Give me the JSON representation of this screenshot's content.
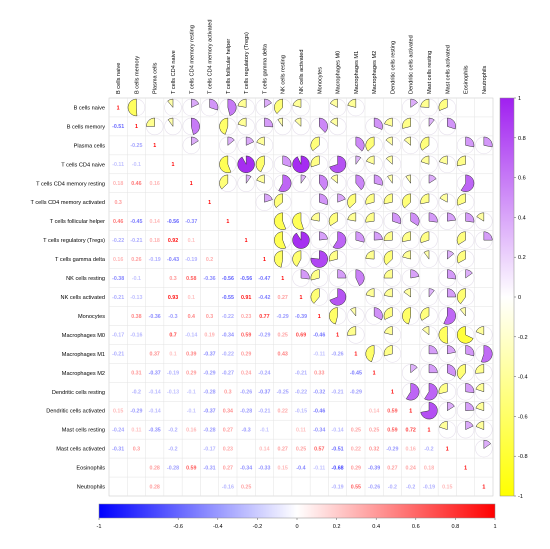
{
  "chart_data": {
    "type": "heatmap",
    "title": "",
    "labels": [
      "B cells naive",
      "B cells memory",
      "Plasma cells",
      "T cells CD4 naive",
      "T cells CD4 memory resting",
      "T cells CD4 memory activated",
      "T cells follicular helper",
      "T cells regulatory (Tregs)",
      "T cells gamma delta",
      "NK cells resting",
      "NK cells activated",
      "Monocytes",
      "Macrophages M0",
      "Macrophages M1",
      "Macrophages M2",
      "Dendritic cells resting",
      "Dendritic cells activated",
      "Mast cells resting",
      "Mast cells activated",
      "Eosinophils",
      "Neutrophils"
    ],
    "lower_numbers_shown": true,
    "upper_shape": "pie",
    "lower_values": [
      [],
      [
        "-0.51"
      ],
      [
        "",
        "-0.25"
      ],
      [
        "-0.11",
        "-0.1",
        ""
      ],
      [
        "0.18",
        "0.46",
        "0.16",
        ""
      ],
      [
        "0.3",
        "",
        "",
        "",
        ""
      ],
      [
        "0.46",
        "-0.45",
        "0.14",
        "-0.56",
        "-0.37",
        ""
      ],
      [
        "-0.22",
        "-0.21",
        "0.18",
        "0.92",
        "0.1",
        ""
      ],
      [
        "0.16",
        "0.26",
        "-0.19",
        "-0.43",
        "-0.19",
        "0.2"
      ],
      [
        "-0.38",
        "-0.1",
        "",
        "0.3",
        "0.58",
        "-0.36",
        "-0.56",
        "-0.56",
        "-0.47"
      ],
      [
        "-0.21",
        "-0.13",
        "",
        "0.93",
        "0.1",
        "",
        "-0.55",
        "0.91",
        "-0.42",
        "0.27"
      ],
      [
        "",
        "0.38",
        "-0.36",
        "-0.3",
        "0.4",
        "0.3",
        "-0.22",
        "0.23",
        "0.77",
        "-0.29",
        "-0.39"
      ],
      [
        "-0.17",
        "-0.16",
        "",
        "0.7",
        "-0.14",
        "0.19",
        "-0.34",
        "0.59",
        "-0.29",
        "0.25",
        "0.69",
        "-0.46"
      ],
      [
        "-0.21",
        "",
        "0.37",
        "0.1",
        "0.39",
        "-0.37",
        "-0.22",
        "0.29",
        "",
        "0.43",
        "",
        "-0.11",
        "-0.26"
      ],
      [
        "",
        "0.31",
        "-0.37",
        "-0.19",
        "0.29",
        "-0.29",
        "-0.27",
        "0.24",
        "-0.24",
        "",
        "-0.21",
        "0.33",
        "",
        "-0.45"
      ],
      [
        "",
        "-0.2",
        "-0.14",
        "-0.13",
        "-0.1",
        "-0.28",
        "0.3",
        "-0.26",
        "-0.37",
        "-0.25",
        "-0.22",
        "-0.32",
        "-0.21",
        "-0.29",
        ""
      ],
      [
        "0.15",
        "-0.29",
        "-0.14",
        "",
        "-0.1",
        "-0.37",
        "0.34",
        "-0.28",
        "-0.21",
        "0.22",
        "-0.15",
        "-0.46",
        "",
        "",
        "0.14",
        "0.59"
      ],
      [
        "-0.24",
        "0.11",
        "-0.35",
        "-0.2",
        "0.16",
        "-0.28",
        "0.27",
        "-0.3",
        "-0.1",
        "",
        "0.11",
        "-0.34",
        "-0.14",
        "0.25",
        "0.25",
        "0.59",
        "0.72"
      ],
      [
        "-0.31",
        "0.3",
        "",
        "-0.2",
        "",
        "-0.17",
        "0.23",
        "",
        "0.14",
        "0.27",
        "0.25",
        "0.57",
        "-0.51",
        "0.22",
        "0.32",
        "-0.29",
        "0.16",
        "-0.2"
      ],
      [
        "",
        "",
        "0.28",
        "-0.28",
        "0.59",
        "-0.31",
        "0.27",
        "-0.34",
        "-0.33",
        "0.15",
        "-0.4",
        "-0.11",
        "-0.68",
        "0.29",
        "-0.39",
        "0.27",
        "0.24",
        "0.18",
        ""
      ],
      [
        "",
        "",
        "0.28",
        "",
        "",
        "",
        "-0.16",
        "0.25",
        "",
        "",
        "",
        "",
        "-0.19",
        "0.55",
        "-0.26",
        "-0.2",
        "-0.2",
        "-0.19",
        "0.15",
        ""
      ]
    ],
    "color_scale": {
      "min": -1,
      "max": 1,
      "negative": "#0000ff",
      "mid": "#ffffff",
      "positive": "#ff0000"
    },
    "colorbar_vertical": {
      "min": -1,
      "max": 1,
      "ticks": [
        1,
        0.8,
        0.6,
        0.4,
        0.2,
        0,
        -0.2,
        -0.4,
        -0.6,
        -0.8,
        -1
      ],
      "low_color": "#ffff00",
      "high_color": "#a020f0"
    },
    "colorbar_horizontal": {
      "min": -1,
      "max": 1,
      "ticks": [
        -1,
        -0.6,
        -0.4,
        -0.2,
        0,
        0.2,
        0.4,
        0.6,
        0.8,
        1
      ],
      "low_color": "#0000ff",
      "mid_color": "#ffffff",
      "high_color": "#ff0000"
    },
    "xlabel": "",
    "ylabel": ""
  }
}
